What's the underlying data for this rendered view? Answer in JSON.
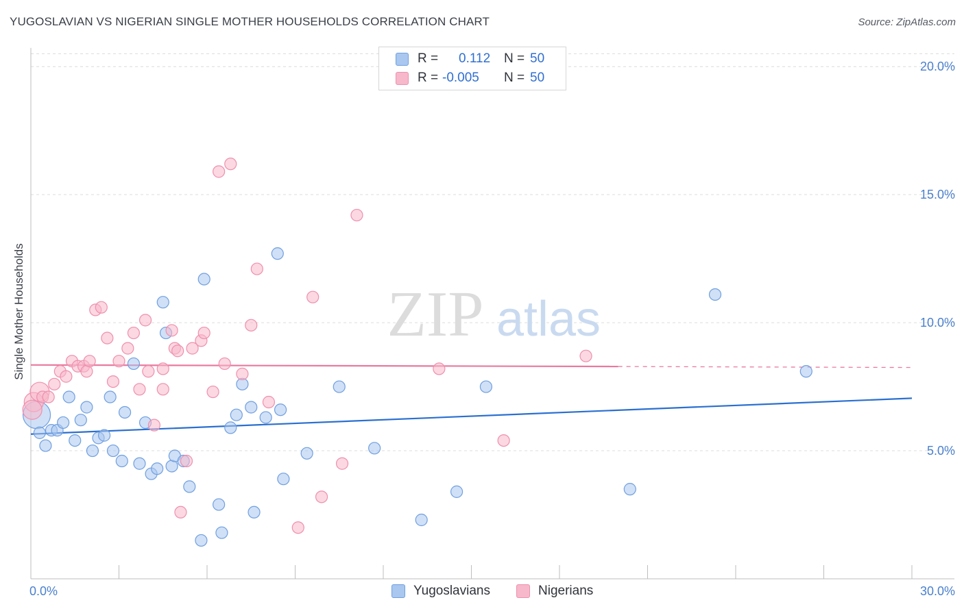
{
  "title": "YUGOSLAVIAN VS NIGERIAN SINGLE MOTHER HOUSEHOLDS CORRELATION CHART",
  "source": "Source: ZipAtlas.com",
  "watermark": {
    "zip": "ZIP",
    "atlas": "atlas"
  },
  "legend": {
    "rows": [
      {
        "r_label": "R =",
        "r_value": "0.112",
        "n_label": "N =",
        "n_value": "50",
        "color": "#a9c7ef",
        "border": "#6f9fe0"
      },
      {
        "r_label": "R =",
        "r_value": "-0.005",
        "n_label": "N =",
        "n_value": "50",
        "color": "#f7b8cb",
        "border": "#ef8fad"
      }
    ]
  },
  "bottom_legend": [
    {
      "label": "Yugoslavians",
      "color": "#a9c7ef",
      "border": "#6f9fe0"
    },
    {
      "label": "Nigerians",
      "color": "#f7b8cb",
      "border": "#ef8fad"
    }
  ],
  "chart_data": {
    "type": "scatter",
    "title": "YUGOSLAVIAN VS NIGERIAN SINGLE MOTHER HOUSEHOLDS CORRELATION CHART",
    "xlabel": "",
    "ylabel": "Single Mother Households",
    "xlim": [
      0,
      30
    ],
    "ylim": [
      0,
      20.5
    ],
    "x_tick_labels": [
      "0.0%",
      "30.0%"
    ],
    "y_ticks": [
      5,
      10,
      15,
      20
    ],
    "y_tick_labels": [
      "5.0%",
      "10.0%",
      "15.0%",
      "20.0%"
    ],
    "grid": true,
    "series": [
      {
        "name": "Yugoslavians",
        "color": "#6f9fe0",
        "fill": "#a9c7ef",
        "trend_color": "#2a6fd0",
        "trend": {
          "x": [
            0,
            30
          ],
          "y": [
            5.65,
            7.05
          ]
        },
        "points": [
          [
            0.2,
            6.4
          ],
          [
            0.3,
            5.7
          ],
          [
            0.5,
            5.2
          ],
          [
            0.7,
            5.8
          ],
          [
            0.9,
            5.8
          ],
          [
            1.1,
            6.1
          ],
          [
            1.3,
            7.1
          ],
          [
            1.5,
            5.4
          ],
          [
            1.7,
            6.2
          ],
          [
            1.9,
            6.7
          ],
          [
            2.1,
            5.0
          ],
          [
            2.3,
            5.5
          ],
          [
            2.5,
            5.6
          ],
          [
            2.7,
            7.1
          ],
          [
            2.8,
            5.0
          ],
          [
            3.1,
            4.6
          ],
          [
            3.2,
            6.5
          ],
          [
            3.5,
            8.4
          ],
          [
            3.7,
            4.5
          ],
          [
            3.9,
            6.1
          ],
          [
            4.1,
            4.1
          ],
          [
            4.3,
            4.3
          ],
          [
            4.5,
            10.8
          ],
          [
            4.6,
            9.6
          ],
          [
            4.8,
            4.4
          ],
          [
            4.9,
            4.8
          ],
          [
            5.2,
            4.6
          ],
          [
            5.4,
            3.6
          ],
          [
            5.8,
            1.5
          ],
          [
            5.9,
            11.7
          ],
          [
            6.4,
            2.9
          ],
          [
            6.5,
            1.8
          ],
          [
            6.8,
            5.9
          ],
          [
            7.0,
            6.4
          ],
          [
            7.2,
            7.6
          ],
          [
            7.5,
            6.7
          ],
          [
            7.6,
            2.6
          ],
          [
            8.0,
            6.3
          ],
          [
            8.4,
            12.7
          ],
          [
            8.5,
            6.6
          ],
          [
            8.6,
            3.9
          ],
          [
            9.4,
            4.9
          ],
          [
            10.5,
            7.5
          ],
          [
            11.7,
            5.1
          ],
          [
            13.3,
            2.3
          ],
          [
            14.5,
            3.4
          ],
          [
            15.5,
            7.5
          ],
          [
            20.4,
            3.5
          ],
          [
            23.3,
            11.1
          ],
          [
            26.4,
            8.1
          ]
        ]
      },
      {
        "name": "Nigerians",
        "color": "#ef8fad",
        "fill": "#f7b8cb",
        "trend_color": "#e9799f",
        "trend": {
          "x": [
            0,
            20
          ],
          "y": [
            8.35,
            8.29
          ],
          "dashed_to": [
            30,
            8.25
          ]
        },
        "points": [
          [
            0.1,
            6.9
          ],
          [
            0.3,
            7.3
          ],
          [
            0.4,
            7.1
          ],
          [
            0.6,
            7.1
          ],
          [
            0.8,
            7.6
          ],
          [
            1.0,
            8.1
          ],
          [
            1.2,
            7.9
          ],
          [
            1.4,
            8.5
          ],
          [
            1.6,
            8.3
          ],
          [
            1.8,
            8.3
          ],
          [
            1.9,
            8.1
          ],
          [
            2.0,
            8.5
          ],
          [
            2.2,
            10.5
          ],
          [
            2.4,
            10.6
          ],
          [
            2.6,
            9.4
          ],
          [
            2.8,
            7.7
          ],
          [
            3.0,
            8.5
          ],
          [
            3.3,
            9.0
          ],
          [
            3.5,
            9.6
          ],
          [
            3.7,
            7.4
          ],
          [
            3.9,
            10.1
          ],
          [
            4.0,
            8.1
          ],
          [
            4.2,
            6.0
          ],
          [
            4.5,
            8.2
          ],
          [
            4.5,
            7.4
          ],
          [
            4.8,
            9.7
          ],
          [
            4.9,
            9.0
          ],
          [
            5.0,
            8.9
          ],
          [
            5.1,
            2.6
          ],
          [
            5.3,
            4.6
          ],
          [
            5.5,
            9.0
          ],
          [
            5.8,
            9.3
          ],
          [
            5.9,
            9.6
          ],
          [
            6.2,
            7.3
          ],
          [
            6.4,
            15.9
          ],
          [
            6.6,
            8.4
          ],
          [
            6.8,
            16.2
          ],
          [
            7.2,
            8.0
          ],
          [
            7.5,
            9.9
          ],
          [
            7.7,
            12.1
          ],
          [
            8.1,
            6.9
          ],
          [
            9.1,
            2.0
          ],
          [
            9.6,
            11.0
          ],
          [
            9.9,
            3.2
          ],
          [
            10.6,
            4.5
          ],
          [
            11.1,
            14.2
          ],
          [
            13.9,
            8.2
          ],
          [
            16.1,
            5.4
          ],
          [
            18.9,
            8.7
          ],
          [
            0.05,
            6.6
          ]
        ]
      }
    ]
  }
}
